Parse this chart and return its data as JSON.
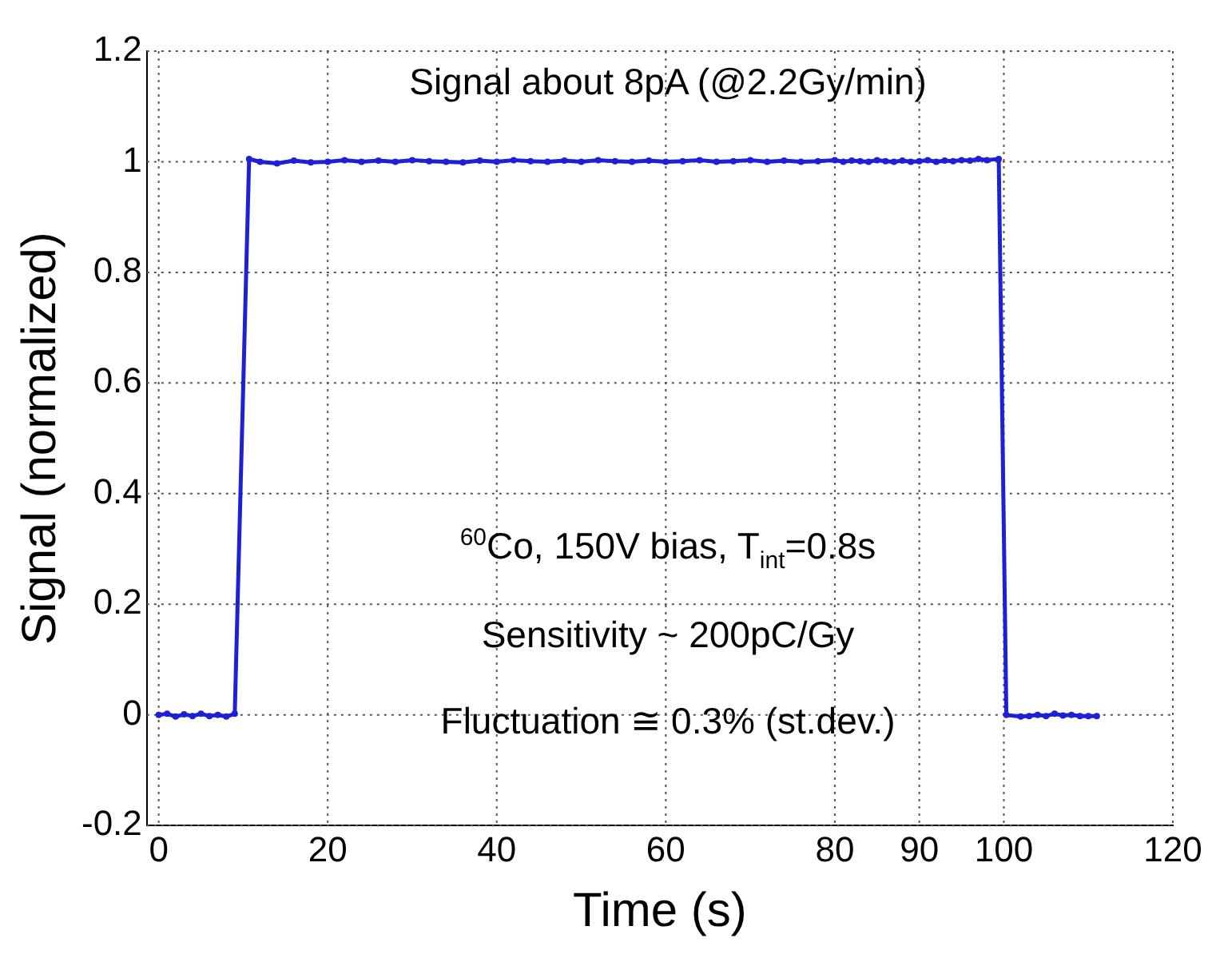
{
  "chart_data": {
    "type": "line",
    "xlabel": "Time (s)",
    "ylabel": "Signal (normalized)",
    "xlim": [
      -1.4,
      120
    ],
    "xticks": [
      0,
      20,
      40,
      60,
      80,
      90,
      100,
      120
    ],
    "ylim": [
      -0.2,
      1.2
    ],
    "yticks": [
      -0.2,
      0,
      0.2,
      0.4,
      0.6,
      0.8,
      1,
      1.2
    ],
    "grid": true,
    "legend": false,
    "marker": "circle",
    "line_style": "solid",
    "annotations": [
      "Signal about 8pA (@2.2Gy/min)",
      "$^{60}$Co, 150V bias, T$_{int}$=0.8s",
      "Sensitivity ~ 200pC/Gy",
      "Fluctuation ≅ 0.3% (st.dev.)"
    ],
    "series": [
      {
        "color": "#1f1fd6",
        "x": [
          0,
          1,
          2,
          3,
          4,
          5,
          6,
          7,
          8,
          9,
          10.7,
          12,
          14,
          16,
          18,
          20,
          22,
          24,
          26,
          28,
          30,
          32,
          34,
          36,
          38,
          40,
          42,
          44,
          46,
          48,
          50,
          52,
          54,
          56,
          58,
          60,
          62,
          64,
          66,
          68,
          70,
          72,
          74,
          76,
          78,
          80,
          81,
          82,
          83,
          84,
          85,
          86,
          87,
          88,
          89,
          90,
          91,
          92,
          93,
          94,
          95,
          96,
          97,
          98,
          99.4,
          100.3,
          102,
          103,
          104,
          105,
          106,
          107,
          108,
          109,
          110,
          111
        ],
        "values": [
          0,
          0.002,
          -0.003,
          0.001,
          -0.002,
          0.002,
          -0.002,
          0,
          -0.003,
          0.002,
          1.005,
          1.0,
          0.997,
          1.002,
          0.999,
          1.0,
          1.003,
          1.0,
          1.002,
          1.0,
          1.003,
          1.001,
          1.0,
          0.999,
          1.002,
          1.0,
          1.003,
          1.001,
          1.0,
          1.002,
          1.0,
          1.003,
          1.001,
          1.0,
          1.002,
          1.0,
          1.001,
          1.003,
          1.0,
          1.001,
          1.003,
          1.0,
          1.002,
          1.0,
          1.001,
          1.003,
          1.0,
          1.002,
          1.001,
          1.0,
          1.003,
          1.001,
          1.0,
          1.002,
          1.0,
          1.001,
          1.003,
          1.0,
          1.002,
          1.001,
          1.003,
          1.002,
          1.005,
          1.003,
          1.005,
          0,
          -0.003,
          -0.002,
          0,
          -0.002,
          0.002,
          -0.001,
          0,
          -0.002,
          -0.002,
          -0.002
        ]
      }
    ]
  }
}
